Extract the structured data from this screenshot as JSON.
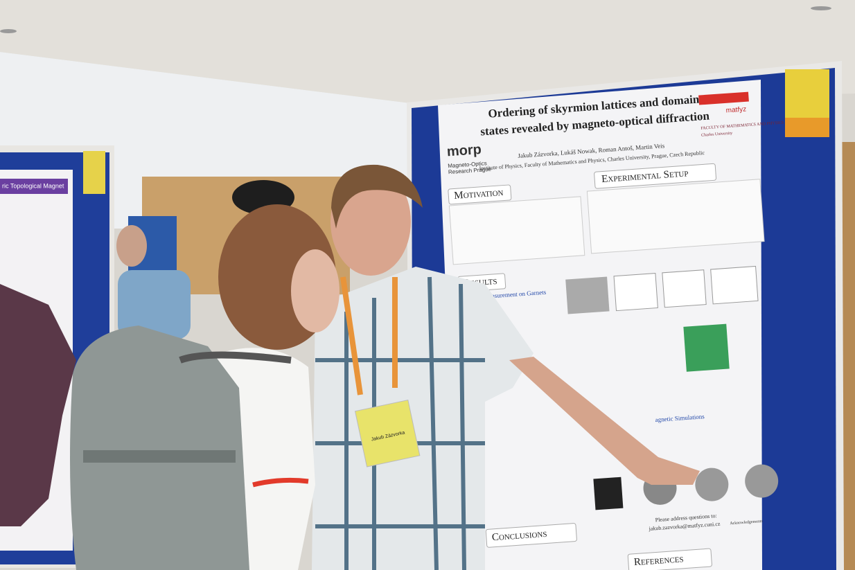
{
  "poster": {
    "title_line1": "Ordering of skyrmion lattices and domain",
    "title_line2": "states revealed by magneto-optical diffraction",
    "authors": "Jakub Zázvorka, Lukáš Nowak, Roman Antoš, Martin Veis",
    "affiliation": "Institute of Physics, Faculty of Mathematics and Physics, Charles University, Prague, Czech Republic",
    "logo": "morp",
    "logo_subtitle_1": "Magneto-Optics",
    "logo_subtitle_2": "Research Prague",
    "matfyz": "matfyz",
    "faculty": "FACULTY OF MATHEMATICS AND PHYSICS",
    "university": "Charles University",
    "sections": [
      "Motivation",
      "Experimental Setup",
      "Results",
      "Conclusions",
      "References"
    ],
    "subsection": "ction Measurement on Garnets",
    "simulations": "agnetic Simulations",
    "contact_label": "Please address questions to:",
    "contact_email": "jakub.zazvorka@matfyz.cuni.cz",
    "acknowledgements": "Acknowledgements"
  },
  "badge": {
    "name": "Jakub Zázvorka"
  },
  "left_poster": {
    "title": "ric Topological Magnet"
  }
}
